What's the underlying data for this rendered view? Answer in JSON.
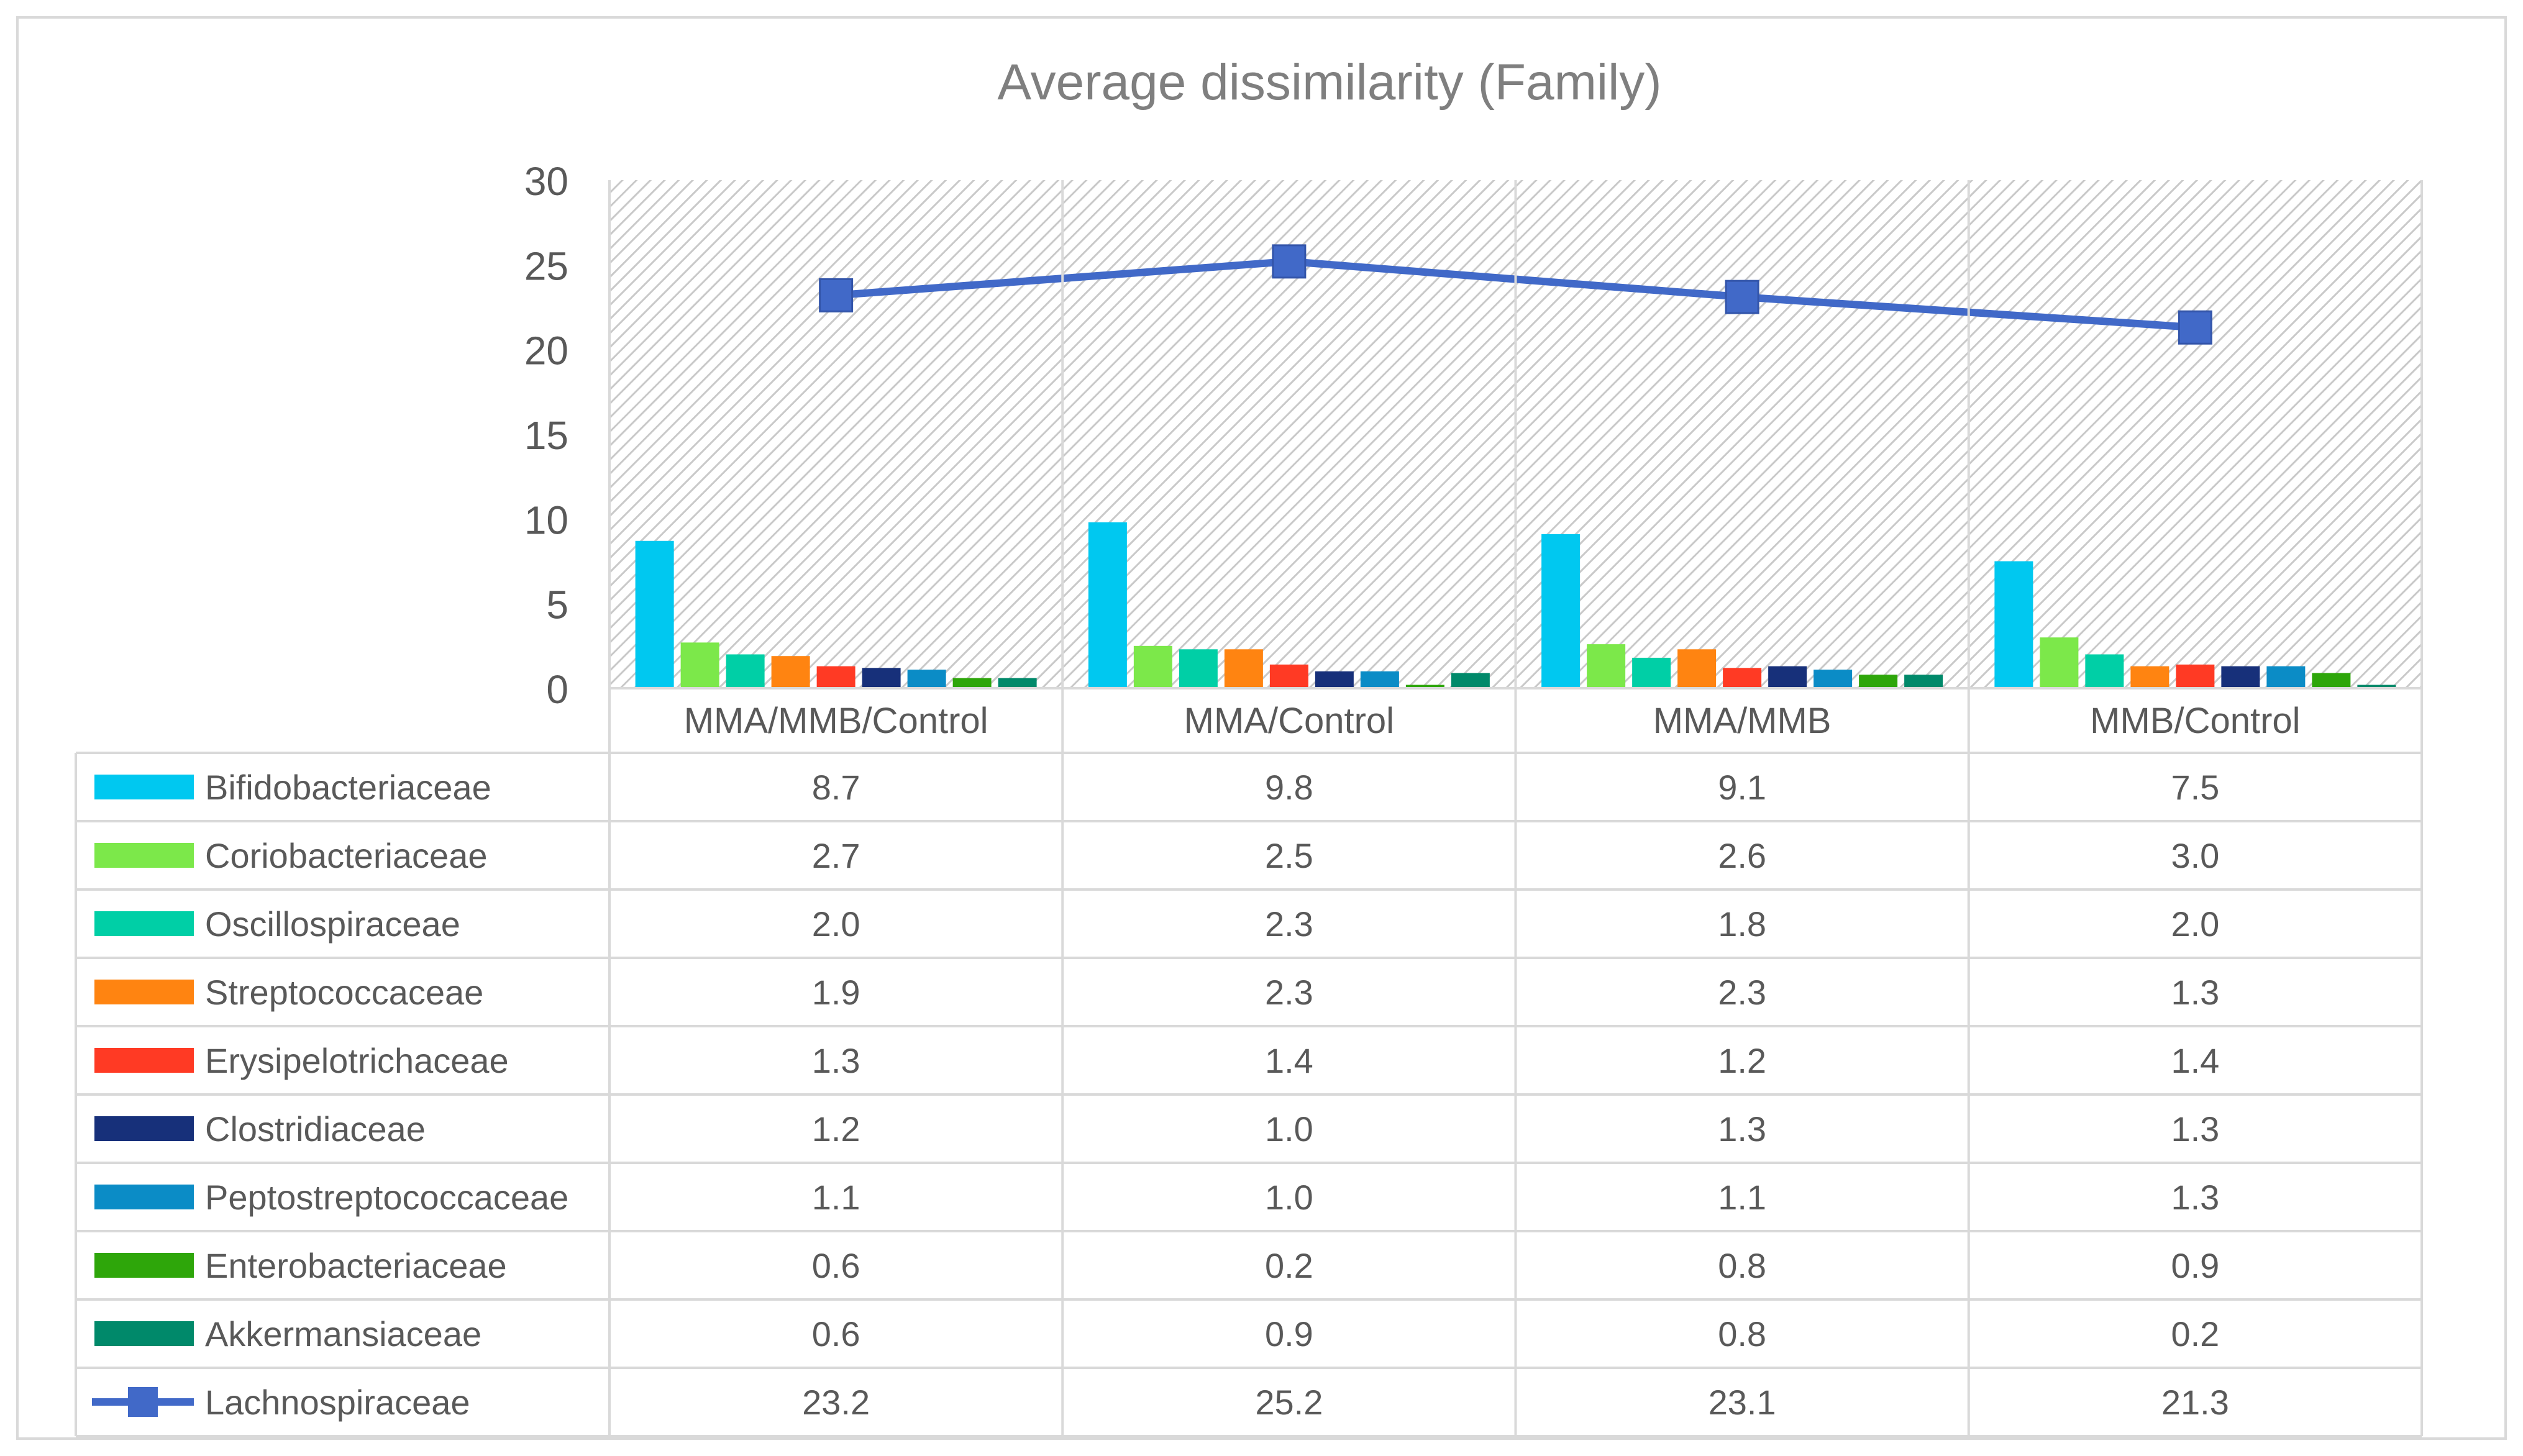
{
  "chart_data": {
    "type": "bar",
    "title": "Average dissimilarity (Family)",
    "categories": [
      "MMA/MMB/Control",
      "MMA/Control",
      "MMA/MMB",
      "MMB/Control"
    ],
    "ylim": [
      0,
      30
    ],
    "yticks": [
      0,
      5,
      10,
      15,
      20,
      25,
      30
    ],
    "grid": false,
    "legend_placement": "data-table-bottom",
    "series": [
      {
        "name": "Bifidobacteriaceae",
        "type": "bar",
        "color": "#00C8F0",
        "values": [
          8.7,
          9.8,
          9.1,
          7.5
        ],
        "labels": [
          "8.7",
          "9.8",
          "9.1",
          "7.5"
        ]
      },
      {
        "name": "Coriobacteriaceae",
        "type": "bar",
        "color": "#7CE84A",
        "values": [
          2.7,
          2.5,
          2.6,
          3.0
        ],
        "labels": [
          "2.7",
          "2.5",
          "2.6",
          "3.0"
        ]
      },
      {
        "name": "Oscillospiraceae",
        "type": "bar",
        "color": "#00CFA6",
        "values": [
          2.0,
          2.3,
          1.8,
          2.0
        ],
        "labels": [
          "2.0",
          "2.3",
          "1.8",
          "2.0"
        ]
      },
      {
        "name": "Streptococcaceae",
        "type": "bar",
        "color": "#FF8411",
        "values": [
          1.9,
          2.3,
          2.3,
          1.3
        ],
        "labels": [
          "1.9",
          "2.3",
          "2.3",
          "1.3"
        ]
      },
      {
        "name": "Erysipelotrichaceae",
        "type": "bar",
        "color": "#FF3A24",
        "values": [
          1.3,
          1.4,
          1.2,
          1.4
        ],
        "labels": [
          "1.3",
          "1.4",
          "1.2",
          "1.4"
        ]
      },
      {
        "name": "Clostridiaceae",
        "type": "bar",
        "color": "#17307A",
        "values": [
          1.2,
          1.0,
          1.3,
          1.3
        ],
        "labels": [
          "1.2",
          "1.0",
          "1.3",
          "1.3"
        ]
      },
      {
        "name": "Peptostreptococcaceae",
        "type": "bar",
        "color": "#0B8CC6",
        "values": [
          1.1,
          1.0,
          1.1,
          1.3
        ],
        "labels": [
          "1.1",
          "1.0",
          "1.1",
          "1.3"
        ]
      },
      {
        "name": "Enterobacteriaceae",
        "type": "bar",
        "color": "#2EA60A",
        "values": [
          0.6,
          0.2,
          0.8,
          0.9
        ],
        "labels": [
          "0.6",
          "0.2",
          "0.8",
          "0.9"
        ]
      },
      {
        "name": "Akkermansiaceae",
        "type": "bar",
        "color": "#00896A",
        "values": [
          0.6,
          0.9,
          0.8,
          0.2
        ],
        "labels": [
          "0.6",
          "0.9",
          "0.8",
          "0.2"
        ]
      },
      {
        "name": "Lachnospiraceae",
        "type": "line",
        "color": "#4169C8",
        "values": [
          23.2,
          25.2,
          23.1,
          21.3
        ],
        "labels": [
          "23.2",
          "25.2",
          "23.1",
          "21.3"
        ]
      }
    ]
  }
}
